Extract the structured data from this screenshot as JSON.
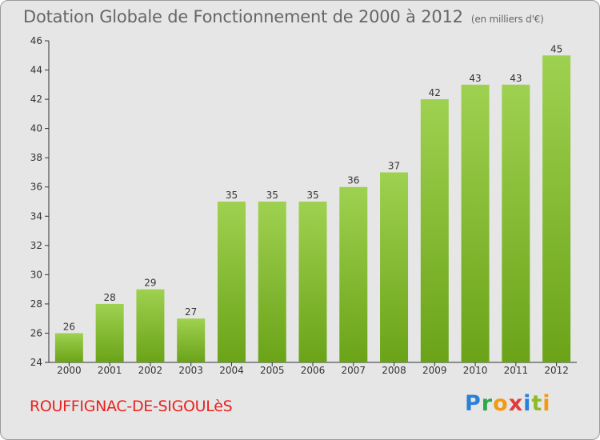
{
  "header": {
    "title": "Dotation Globale de Fonctionnement de 2000 à 2012",
    "unit": "(en milliers d'€)"
  },
  "footer": {
    "town": "ROUFFIGNAC-DE-SIGOULèS",
    "logo": [
      "P",
      "r",
      "o",
      "x",
      "i",
      "t",
      "i"
    ]
  },
  "colors": {
    "bar_top": "#9fd150",
    "bar_bottom": "#6aa318",
    "background": "#e6e6e6"
  },
  "chart_data": {
    "type": "bar",
    "title": "Dotation Globale de Fonctionnement de 2000 à 2012",
    "subtitle": "(en milliers d'€)",
    "categories": [
      "2000",
      "2001",
      "2002",
      "2003",
      "2004",
      "2005",
      "2006",
      "2007",
      "2008",
      "2009",
      "2010",
      "2011",
      "2012"
    ],
    "values": [
      26,
      28,
      29,
      27,
      35,
      35,
      35,
      36,
      37,
      42,
      43,
      43,
      45
    ],
    "ylim": [
      24,
      46
    ],
    "yticks": [
      24,
      26,
      28,
      30,
      32,
      34,
      36,
      38,
      40,
      42,
      44,
      46
    ],
    "grid": false,
    "legend": "none"
  }
}
